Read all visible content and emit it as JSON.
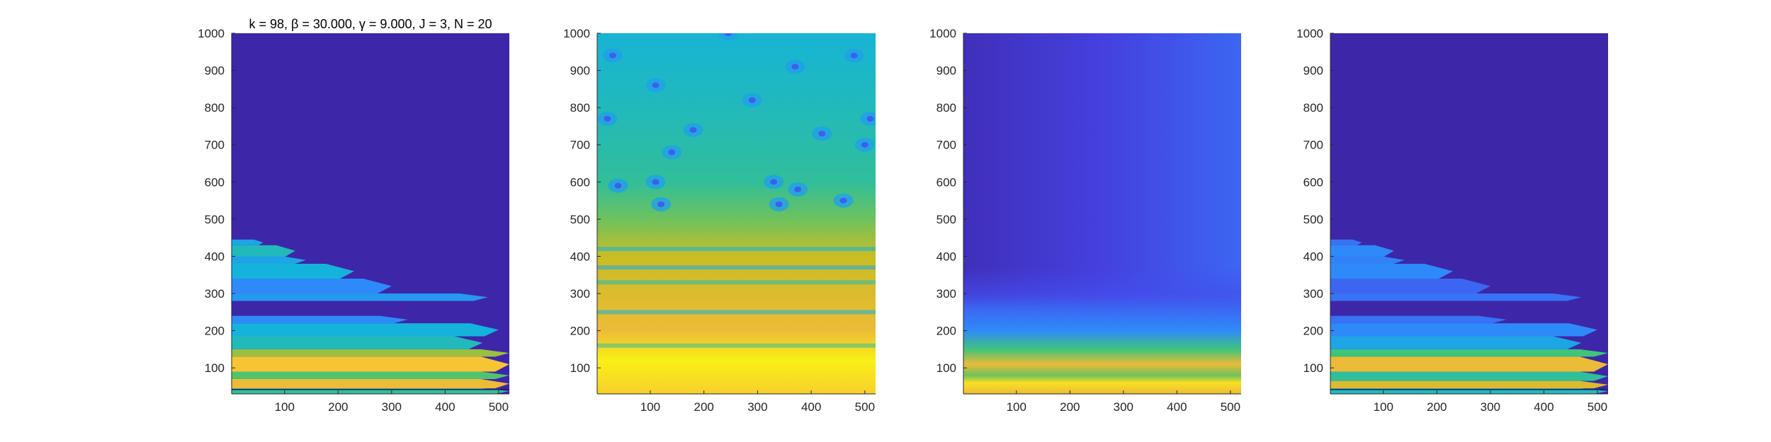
{
  "chart_data": [
    {
      "type": "heatmap",
      "title": "k = 98, β = 30.000, γ = 9.000, J = 3, N = 20",
      "xlabel": "",
      "ylabel": "",
      "xlim": [
        1,
        520
      ],
      "ylim": [
        30,
        1000
      ],
      "xticks": [
        "100",
        "200",
        "300",
        "400",
        "500"
      ],
      "yticks": [
        "100",
        "200",
        "300",
        "400",
        "500",
        "600",
        "700",
        "800",
        "900",
        "1000"
      ],
      "colormap": "parula",
      "background_color": "#3e26a8",
      "bands": [
        {
          "y": [
            30,
            45
          ],
          "level": 0.55,
          "x_end": 520
        },
        {
          "y": [
            45,
            70
          ],
          "level": 0.85,
          "x_end": 520
        },
        {
          "y": [
            70,
            90
          ],
          "level": 0.62,
          "x_end": 520
        },
        {
          "y": [
            90,
            130
          ],
          "level": 0.9,
          "x_end": 520
        },
        {
          "y": [
            130,
            150
          ],
          "level": 0.7,
          "x_end": 520
        },
        {
          "y": [
            150,
            185
          ],
          "level": 0.5,
          "x_end": 470
        },
        {
          "y": [
            185,
            220
          ],
          "level": 0.45,
          "x_end": 500
        },
        {
          "y": [
            220,
            240
          ],
          "level": 0.3,
          "x_end": 330
        },
        {
          "y": [
            280,
            300
          ],
          "level": 0.35,
          "x_end": 480
        },
        {
          "y": [
            300,
            340
          ],
          "level": 0.3,
          "x_end": 300
        },
        {
          "y": [
            340,
            380
          ],
          "level": 0.45,
          "x_end": 230
        },
        {
          "y": [
            380,
            400
          ],
          "level": 0.4,
          "x_end": 140
        },
        {
          "y": [
            400,
            430
          ],
          "level": 0.5,
          "x_end": 120
        },
        {
          "y": [
            430,
            445
          ],
          "level": 0.4,
          "x_end": 60
        }
      ]
    },
    {
      "type": "heatmap",
      "title": "",
      "xlabel": "",
      "ylabel": "",
      "xlim": [
        1,
        520
      ],
      "ylim": [
        30,
        1000
      ],
      "xticks": [
        "100",
        "200",
        "300",
        "400",
        "500"
      ],
      "yticks": [
        "100",
        "200",
        "300",
        "400",
        "500",
        "600",
        "700",
        "800",
        "900",
        "1000"
      ],
      "colormap": "parula",
      "gradient": [
        {
          "y": 30,
          "level": 0.92
        },
        {
          "y": 120,
          "level": 0.98
        },
        {
          "y": 200,
          "level": 0.85
        },
        {
          "y": 300,
          "level": 0.8
        },
        {
          "y": 400,
          "level": 0.75
        },
        {
          "y": 500,
          "level": 0.65
        },
        {
          "y": 600,
          "level": 0.55
        },
        {
          "y": 800,
          "level": 0.5
        },
        {
          "y": 1000,
          "level": 0.46
        }
      ],
      "stripes": [
        {
          "y": 160,
          "level": 0.55
        },
        {
          "y": 250,
          "level": 0.45
        },
        {
          "y": 330,
          "level": 0.5
        },
        {
          "y": 370,
          "level": 0.4
        },
        {
          "y": 420,
          "level": 0.45
        }
      ],
      "spots": [
        {
          "x": 30,
          "y": 940
        },
        {
          "x": 245,
          "y": 1000
        },
        {
          "x": 480,
          "y": 940
        },
        {
          "x": 110,
          "y": 860
        },
        {
          "x": 370,
          "y": 910
        },
        {
          "x": 290,
          "y": 820
        },
        {
          "x": 20,
          "y": 770
        },
        {
          "x": 510,
          "y": 770
        },
        {
          "x": 180,
          "y": 740
        },
        {
          "x": 140,
          "y": 680
        },
        {
          "x": 420,
          "y": 730
        },
        {
          "x": 500,
          "y": 700
        },
        {
          "x": 40,
          "y": 590
        },
        {
          "x": 110,
          "y": 600
        },
        {
          "x": 330,
          "y": 600
        },
        {
          "x": 375,
          "y": 580
        },
        {
          "x": 460,
          "y": 550
        },
        {
          "x": 120,
          "y": 540
        },
        {
          "x": 340,
          "y": 540
        }
      ]
    },
    {
      "type": "heatmap",
      "title": "",
      "xlabel": "",
      "ylabel": "",
      "xlim": [
        1,
        520
      ],
      "ylim": [
        30,
        1000
      ],
      "xticks": [
        "100",
        "200",
        "300",
        "400",
        "500"
      ],
      "yticks": [
        "100",
        "200",
        "300",
        "400",
        "500",
        "600",
        "700",
        "800",
        "900",
        "1000"
      ],
      "colormap": "parula",
      "gradient": [
        {
          "y": 30,
          "level": 0.85
        },
        {
          "y": 60,
          "level": 0.95
        },
        {
          "y": 80,
          "level": 0.65
        },
        {
          "y": 110,
          "level": 0.85
        },
        {
          "y": 150,
          "level": 0.6
        },
        {
          "y": 200,
          "level": 0.3
        },
        {
          "y": 300,
          "level": 0.17
        },
        {
          "y": 1000,
          "level": 0.1
        }
      ],
      "horizontal_tint": [
        {
          "x": 1,
          "level": 0.04
        },
        {
          "x": 260,
          "level": 0.12
        },
        {
          "x": 520,
          "level": 0.22
        }
      ]
    },
    {
      "type": "heatmap",
      "title": "",
      "xlabel": "",
      "ylabel": "",
      "xlim": [
        1,
        520
      ],
      "ylim": [
        30,
        1000
      ],
      "xticks": [
        "100",
        "200",
        "300",
        "400",
        "500"
      ],
      "yticks": [
        "100",
        "200",
        "300",
        "400",
        "500",
        "600",
        "700",
        "800",
        "900",
        "1000"
      ],
      "colormap": "parula",
      "background_color": "#3e26a8",
      "bands": [
        {
          "y": [
            30,
            45
          ],
          "level": 0.5,
          "x_end": 520
        },
        {
          "y": [
            45,
            65
          ],
          "level": 0.8,
          "x_end": 520
        },
        {
          "y": [
            65,
            90
          ],
          "level": 0.55,
          "x_end": 520
        },
        {
          "y": [
            90,
            130
          ],
          "level": 0.85,
          "x_end": 520
        },
        {
          "y": [
            130,
            150
          ],
          "level": 0.6,
          "x_end": 520
        },
        {
          "y": [
            150,
            185
          ],
          "level": 0.4,
          "x_end": 470
        },
        {
          "y": [
            185,
            220
          ],
          "level": 0.3,
          "x_end": 500
        },
        {
          "y": [
            220,
            240
          ],
          "level": 0.25,
          "x_end": 330
        },
        {
          "y": [
            280,
            300
          ],
          "level": 0.25,
          "x_end": 470
        },
        {
          "y": [
            300,
            340
          ],
          "level": 0.22,
          "x_end": 300
        },
        {
          "y": [
            340,
            380
          ],
          "level": 0.3,
          "x_end": 230
        },
        {
          "y": [
            380,
            400
          ],
          "level": 0.28,
          "x_end": 140
        },
        {
          "y": [
            400,
            430
          ],
          "level": 0.3,
          "x_end": 120
        },
        {
          "y": [
            430,
            445
          ],
          "level": 0.25,
          "x_end": 60
        }
      ]
    }
  ]
}
